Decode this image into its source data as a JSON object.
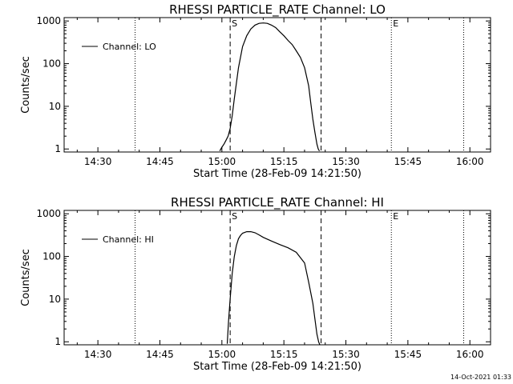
{
  "footer": {
    "timestamp": "14-Oct-2021 01:33"
  },
  "chart_data": [
    {
      "type": "line",
      "title": "RHESSI PARTICLE_RATE Channel: LO",
      "xlabel": "Start Time (28-Feb-09 14:21:50)",
      "ylabel": "Counts/sec",
      "legend": {
        "label": "Channel: LO",
        "position": "top-left"
      },
      "x_ticks": [
        "14:30",
        "14:45",
        "15:00",
        "15:15",
        "15:30",
        "15:45",
        "16:00"
      ],
      "x_tick_minutes": [
        30,
        45,
        60,
        75,
        90,
        105,
        120
      ],
      "x_range_minutes": [
        21.83,
        125
      ],
      "y_log": true,
      "y_range": [
        0.85,
        1200
      ],
      "y_ticks": [
        "1",
        "10",
        "100",
        "1000"
      ],
      "y_tick_values": [
        1,
        10,
        100,
        1000
      ],
      "dashed_lines_minutes": [
        62,
        84
      ],
      "dotted_lines_minutes": [
        39,
        101,
        118.5
      ],
      "markers": [
        {
          "label": "S",
          "minute": 62
        },
        {
          "label": "E",
          "minute": 101
        }
      ],
      "series": [
        {
          "name": "Channel: LO",
          "x_minutes": [
            59.5,
            60,
            60.5,
            61,
            61.5,
            62,
            62.5,
            63,
            64,
            65,
            66,
            67,
            68,
            69,
            70,
            71,
            72,
            73,
            74,
            75,
            76,
            77,
            78,
            79,
            80,
            81,
            81.5,
            82,
            82.5,
            83,
            83.3,
            83.6
          ],
          "values": [
            0.9,
            1.1,
            1.3,
            1.6,
            2.0,
            3,
            6,
            15,
            80,
            250,
            450,
            650,
            800,
            880,
            900,
            880,
            800,
            700,
            560,
            450,
            350,
            280,
            200,
            140,
            80,
            30,
            12,
            5,
            2.5,
            1.3,
            1.0,
            0.9
          ]
        }
      ]
    },
    {
      "type": "line",
      "title": "RHESSI PARTICLE_RATE Channel: HI",
      "xlabel": "Start Time (28-Feb-09 14:21:50)",
      "ylabel": "Counts/sec",
      "legend": {
        "label": "Channel: HI",
        "position": "top-left"
      },
      "x_ticks": [
        "14:30",
        "14:45",
        "15:00",
        "15:15",
        "15:30",
        "15:45",
        "16:00"
      ],
      "x_tick_minutes": [
        30,
        45,
        60,
        75,
        90,
        105,
        120
      ],
      "x_range_minutes": [
        21.83,
        125
      ],
      "y_log": true,
      "y_range": [
        0.85,
        1200
      ],
      "y_ticks": [
        "1",
        "10",
        "100",
        "1000"
      ],
      "y_tick_values": [
        1,
        10,
        100,
        1000
      ],
      "dashed_lines_minutes": [
        62,
        84
      ],
      "dotted_lines_minutes": [
        39,
        101,
        118.5
      ],
      "markers": [
        {
          "label": "S",
          "minute": 62
        },
        {
          "label": "E",
          "minute": 101
        }
      ],
      "series": [
        {
          "name": "Channel: HI",
          "x_minutes": [
            61.3,
            61.6,
            62,
            62.5,
            63,
            63.5,
            64,
            64.5,
            65,
            66,
            67,
            68,
            69,
            70,
            72,
            74,
            76,
            78,
            80,
            81,
            82,
            82.5,
            83,
            83.4,
            83.7
          ],
          "values": [
            0.9,
            3,
            10,
            40,
            100,
            180,
            260,
            310,
            350,
            380,
            380,
            360,
            320,
            280,
            230,
            190,
            160,
            125,
            70,
            25,
            8,
            3.5,
            1.5,
            1.0,
            0.85
          ]
        }
      ]
    }
  ]
}
